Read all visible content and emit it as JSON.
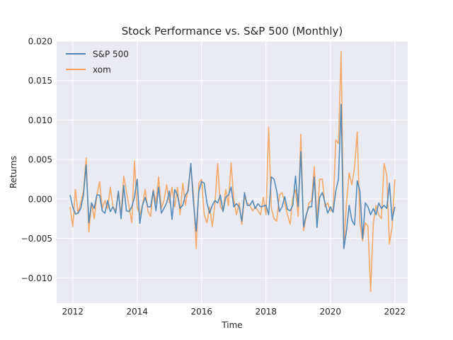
{
  "chart_data": {
    "type": "line",
    "title": "Stock Performance vs. S&P 500 (Monthly)",
    "xlabel": "Time",
    "ylabel": "Returns",
    "xlim": [
      2011.5,
      2022.4
    ],
    "ylim": [
      -0.0132,
      0.02
    ],
    "x_ticks": [
      2012,
      2014,
      2016,
      2018,
      2020,
      2022
    ],
    "x_tick_labels": [
      "2012",
      "2014",
      "2016",
      "2018",
      "2020",
      "2022"
    ],
    "y_ticks": [
      -0.01,
      -0.005,
      0.0,
      0.005,
      0.01,
      0.015,
      0.02
    ],
    "y_tick_labels": [
      "−0.010",
      "−0.005",
      "0.000",
      "0.005",
      "0.010",
      "0.015",
      "0.020"
    ],
    "grid": true,
    "legend_position": "top-left",
    "colors": {
      "S&P 500": "#4c86b6",
      "xom": "#f5a35c",
      "axes_bg": "#eaeaf2",
      "grid": "#ffffff"
    },
    "x_start": "2011-12",
    "x_step_months": 1,
    "series": [
      {
        "name": "S&P 500",
        "values": [
          0.0005,
          -0.001,
          -0.0019,
          -0.0018,
          -0.0012,
          0.0005,
          0.0043,
          -0.003,
          -0.0005,
          -0.0012,
          0.0005,
          0.0005,
          -0.0015,
          -0.0018,
          -0.0002,
          -0.0016,
          -0.001,
          -0.0018,
          0.001,
          -0.0025,
          0.0017,
          -0.0015,
          -0.0016,
          -0.001,
          0.0002,
          0.0025,
          -0.0031,
          -0.0008,
          0.0002,
          -0.001,
          -0.001,
          0.001,
          -0.0015,
          0.0015,
          -0.0018,
          -0.0012,
          -0.0005,
          0.001,
          -0.0026,
          0.0012,
          0.0005,
          -0.0012,
          -0.0008,
          0.0005,
          0.001,
          0.0045,
          -0.0005,
          -0.0041,
          0.001,
          0.0022,
          0.002,
          -0.0005,
          -0.0018,
          -0.0008,
          -0.0002,
          -0.0005,
          0.0005,
          -0.0016,
          0.0002,
          0.0005,
          0.0015,
          -0.001,
          -0.0006,
          -0.001,
          -0.0028,
          0.0008,
          -0.0008,
          -0.0008,
          -0.0002,
          -0.0012,
          -0.0006,
          -0.001,
          -0.0009,
          -0.0008,
          -0.002,
          0.0028,
          0.0025,
          0.001,
          -0.0016,
          -0.001,
          0.0003,
          -0.0013,
          -0.0015,
          -0.0008,
          0.0029,
          -0.001,
          0.006,
          -0.0035,
          -0.002,
          -0.001,
          -0.001,
          0.0028,
          -0.0036,
          0.0002,
          0.0008,
          -0.0005,
          -0.0018,
          -0.001,
          -0.0017,
          0.001,
          0.0025,
          0.012,
          -0.0063,
          -0.004,
          -0.0008,
          -0.0027,
          -0.0033,
          0.0023,
          0.001,
          -0.005,
          -0.0005,
          -0.001,
          -0.002,
          -0.0012,
          -0.002,
          -0.0005,
          -0.0012,
          -0.0008,
          -0.0012,
          0.002,
          -0.0027,
          -0.001
        ]
      },
      {
        "name": "xom",
        "values": [
          -0.001,
          -0.0035,
          0.0012,
          -0.0018,
          -0.0005,
          0.001,
          0.0052,
          -0.0042,
          -0.0005,
          -0.0025,
          0.0005,
          0.0022,
          -0.0012,
          -0.0002,
          -0.0012,
          0.0015,
          -0.001,
          -0.0015,
          0.0008,
          -0.002,
          0.0029,
          0.001,
          -0.001,
          -0.003,
          0.0048,
          -0.001,
          -0.002,
          -0.0008,
          0.0012,
          -0.0015,
          -0.0022,
          0.0012,
          -0.0005,
          0.0028,
          -0.0012,
          -0.0002,
          0.0018,
          -0.0005,
          0.0015,
          -0.001,
          0.0015,
          -0.002,
          0.002,
          -0.0008,
          0.0015,
          0.004,
          0.0005,
          -0.0063,
          0.002,
          0.0025,
          -0.002,
          -0.003,
          -0.001,
          -0.0035,
          -0.0005,
          0.0045,
          -0.001,
          -0.0015,
          0.0012,
          -0.0008,
          0.0046,
          0.0,
          -0.002,
          -0.0005,
          -0.0032,
          0.0002,
          -0.0005,
          -0.0008,
          -0.0015,
          -0.001,
          -0.0015,
          -0.002,
          0.0002,
          -0.002,
          0.0091,
          -0.0012,
          -0.0025,
          -0.0028,
          0.0005,
          0.0008,
          -0.0005,
          -0.002,
          -0.0032,
          0.0002,
          0.0012,
          -0.0022,
          0.0082,
          -0.004,
          -0.0022,
          -0.0005,
          -0.0002,
          0.0041,
          -0.003,
          0.0025,
          0.0025,
          -0.001,
          -0.0005,
          -0.0015,
          -0.0015,
          0.0075,
          0.007,
          0.0187,
          -0.006,
          -0.0005,
          0.0033,
          0.0018,
          0.004,
          0.0085,
          -0.003,
          -0.0053,
          -0.003,
          -0.0035,
          -0.0117,
          -0.003,
          -0.0008,
          -0.002,
          -0.0025,
          0.0045,
          0.003,
          -0.0057,
          -0.0035,
          0.0025
        ]
      }
    ]
  }
}
